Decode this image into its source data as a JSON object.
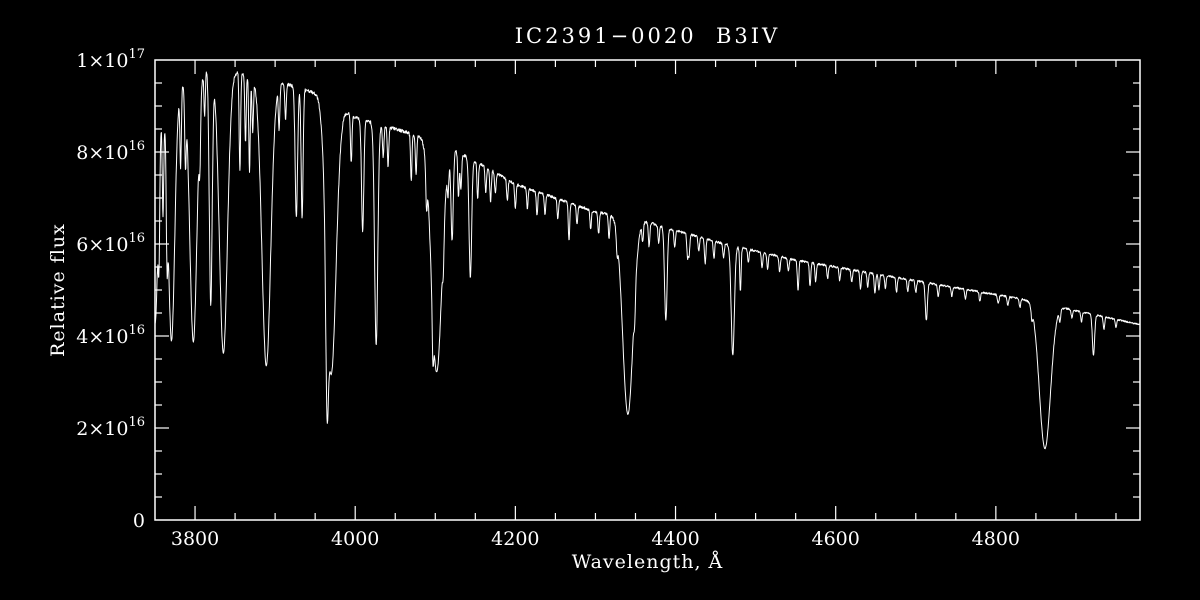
{
  "chart_data": {
    "type": "line",
    "title": "IC2391−0020  B3IV",
    "xlabel": "Wavelength, Å",
    "ylabel": "Relative flux",
    "xlim": [
      3750,
      4980
    ],
    "ylim": [
      0,
      1e+17
    ],
    "line_color": "#ffffff",
    "background": "#000000",
    "grid": false,
    "xticks": {
      "major": [
        3800,
        4000,
        4200,
        4400,
        4600,
        4800
      ],
      "major_labels": [
        "3800",
        "4000",
        "4200",
        "4400",
        "4600",
        "4800"
      ],
      "minor_step": 50
    },
    "yticks": {
      "major": [
        0,
        2e+16,
        4e+16,
        6e+16,
        8e+16,
        1e+17
      ],
      "labels": [
        [
          "0",
          ""
        ],
        [
          "2×10",
          "16"
        ],
        [
          "4×10",
          "16"
        ],
        [
          "6×10",
          "16"
        ],
        [
          "8×10",
          "16"
        ],
        [
          "1×10",
          "17"
        ]
      ],
      "minor_step": 5000000000000000.0
    },
    "continuum": [
      [
        3750,
        8.9e+16
      ],
      [
        3762,
        9.15e+16
      ],
      [
        3778,
        9.4e+16
      ],
      [
        3790,
        9.6e+16
      ],
      [
        3806,
        9.8e+16
      ],
      [
        3815,
        9.85e+16
      ],
      [
        3850,
        9.75e+16
      ],
      [
        3880,
        9.6e+16
      ],
      [
        3920,
        9.45e+16
      ],
      [
        3955,
        9.25e+16
      ],
      [
        4000,
        8.75e+16
      ],
      [
        4050,
        8.5e+16
      ],
      [
        4100,
        8.25e+16
      ],
      [
        4150,
        7.8e+16
      ],
      [
        4200,
        7.3e+16
      ],
      [
        4250,
        7e+16
      ],
      [
        4300,
        6.7e+16
      ],
      [
        4360,
        6.5e+16
      ],
      [
        4400,
        6.3e+16
      ],
      [
        4450,
        6.05e+16
      ],
      [
        4500,
        5.85e+16
      ],
      [
        4550,
        5.65e+16
      ],
      [
        4600,
        5.5e+16
      ],
      [
        4650,
        5.35e+16
      ],
      [
        4700,
        5.2e+16
      ],
      [
        4750,
        5.05e+16
      ],
      [
        4800,
        4.9e+16
      ],
      [
        4850,
        4.75e+16
      ],
      [
        4900,
        4.55e+16
      ],
      [
        4940,
        4.4e+16
      ],
      [
        4980,
        4.25e+16
      ]
    ],
    "absorption_lines": [
      {
        "c": 3750.2,
        "d": 0.52,
        "w": 3.5
      },
      {
        "c": 3770.6,
        "d": 0.58,
        "w": 4.0
      },
      {
        "c": 3797.9,
        "d": 0.6,
        "w": 4.5
      },
      {
        "c": 3835.4,
        "d": 0.63,
        "w": 5.0
      },
      {
        "c": 3889.0,
        "d": 0.65,
        "w": 5.5
      },
      {
        "c": 3970.1,
        "d": 0.65,
        "w": 6.0
      },
      {
        "c": 4101.7,
        "d": 0.61,
        "w": 6.5
      },
      {
        "c": 4340.5,
        "d": 0.65,
        "w": 6.5
      },
      {
        "c": 4861.3,
        "d": 0.67,
        "w": 7.0
      },
      {
        "c": 3819.6,
        "d": 0.52,
        "w": 1.8
      },
      {
        "c": 3926.5,
        "d": 0.3,
        "w": 1.5
      },
      {
        "c": 3933.7,
        "d": 0.3,
        "w": 1.2
      },
      {
        "c": 3964.7,
        "d": 0.32,
        "w": 1.6
      },
      {
        "c": 4009.3,
        "d": 0.28,
        "w": 1.4
      },
      {
        "c": 4026.2,
        "d": 0.56,
        "w": 2.0
      },
      {
        "c": 4121.0,
        "d": 0.24,
        "w": 1.4
      },
      {
        "c": 4143.8,
        "d": 0.33,
        "w": 1.6
      },
      {
        "c": 4387.9,
        "d": 0.32,
        "w": 1.6
      },
      {
        "c": 4471.5,
        "d": 0.4,
        "w": 2.0
      },
      {
        "c": 4713.2,
        "d": 0.16,
        "w": 1.3
      },
      {
        "c": 4921.9,
        "d": 0.2,
        "w": 1.4
      }
    ],
    "weak_lines": [
      [
        3755,
        0.2
      ],
      [
        3760,
        0.25
      ],
      [
        3765,
        0.2
      ],
      [
        3782,
        0.18
      ],
      [
        3788,
        0.15
      ],
      [
        3806,
        0.12
      ],
      [
        3812,
        0.1
      ],
      [
        3856,
        0.22
      ],
      [
        3863,
        0.15
      ],
      [
        3868,
        0.22
      ],
      [
        3872,
        0.12
      ],
      [
        3905,
        0.1
      ],
      [
        3913,
        0.08
      ],
      [
        3995,
        0.12
      ],
      [
        4035,
        0.08
      ],
      [
        4041,
        0.1
      ],
      [
        4070,
        0.12
      ],
      [
        4076,
        0.1
      ],
      [
        4089,
        0.1
      ],
      [
        4097,
        0.12
      ],
      [
        4110,
        0.08
      ],
      [
        4116,
        0.08
      ],
      [
        4129,
        0.12
      ],
      [
        4132,
        0.1
      ],
      [
        4153,
        0.1
      ],
      [
        4163,
        0.07
      ],
      [
        4169,
        0.09
      ],
      [
        4175,
        0.06
      ],
      [
        4190,
        0.06
      ],
      [
        4200,
        0.07
      ],
      [
        4215,
        0.06
      ],
      [
        4227,
        0.07
      ],
      [
        4237,
        0.06
      ],
      [
        4253,
        0.06
      ],
      [
        4267,
        0.12
      ],
      [
        4277,
        0.06
      ],
      [
        4294,
        0.06
      ],
      [
        4304,
        0.07
      ],
      [
        4317,
        0.08
      ],
      [
        4327,
        0.06
      ],
      [
        4349,
        0.08
      ],
      [
        4359,
        0.06
      ],
      [
        4367,
        0.08
      ],
      [
        4379,
        0.06
      ],
      [
        4399,
        0.06
      ],
      [
        4415,
        0.08
      ],
      [
        4417,
        0.07
      ],
      [
        4429,
        0.05
      ],
      [
        4437,
        0.09
      ],
      [
        4448,
        0.06
      ],
      [
        4460,
        0.05
      ],
      [
        4481,
        0.16
      ],
      [
        4491,
        0.05
      ],
      [
        4508,
        0.06
      ],
      [
        4515,
        0.06
      ],
      [
        4530,
        0.06
      ],
      [
        4541,
        0.05
      ],
      [
        4553,
        0.12
      ],
      [
        4568,
        0.09
      ],
      [
        4575,
        0.07
      ],
      [
        4590,
        0.05
      ],
      [
        4605,
        0.05
      ],
      [
        4620,
        0.05
      ],
      [
        4631,
        0.07
      ],
      [
        4640,
        0.06
      ],
      [
        4649,
        0.08
      ],
      [
        4654,
        0.06
      ],
      [
        4662,
        0.05
      ],
      [
        4676,
        0.06
      ],
      [
        4690,
        0.05
      ],
      [
        4700,
        0.05
      ],
      [
        4728,
        0.05
      ],
      [
        4745,
        0.04
      ],
      [
        4762,
        0.04
      ],
      [
        4780,
        0.04
      ],
      [
        4803,
        0.04
      ],
      [
        4815,
        0.04
      ],
      [
        4830,
        0.04
      ],
      [
        4845,
        0.05
      ],
      [
        4880,
        0.05
      ],
      [
        4895,
        0.04
      ],
      [
        4907,
        0.05
      ],
      [
        4935,
        0.06
      ],
      [
        4950,
        0.04
      ]
    ],
    "weak_line_width": 0.9,
    "noise_amplitude": 0.008,
    "sample_step": 0.4
  }
}
